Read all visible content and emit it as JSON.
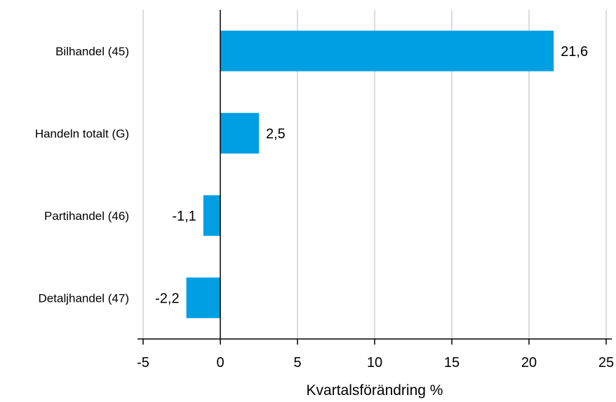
{
  "chart_data": {
    "type": "bar",
    "orientation": "horizontal",
    "categories": [
      "Bilhandel (45)",
      "Handeln totalt (G)",
      "Partihandel (46)",
      "Detaljhandel (47)"
    ],
    "values": [
      21.6,
      2.5,
      -1.1,
      -2.2
    ],
    "value_labels": [
      "21,6",
      "2,5",
      "-1,1",
      "-2,2"
    ],
    "xlabel": "Kvartalsförändring %",
    "xlim": [
      -5,
      25
    ],
    "xticks": [
      -5,
      0,
      5,
      10,
      15,
      20,
      25
    ],
    "xtick_labels": [
      "-5",
      "0",
      "5",
      "10",
      "15",
      "20",
      "25"
    ],
    "grid": true,
    "bar_color": "#009fe3"
  }
}
